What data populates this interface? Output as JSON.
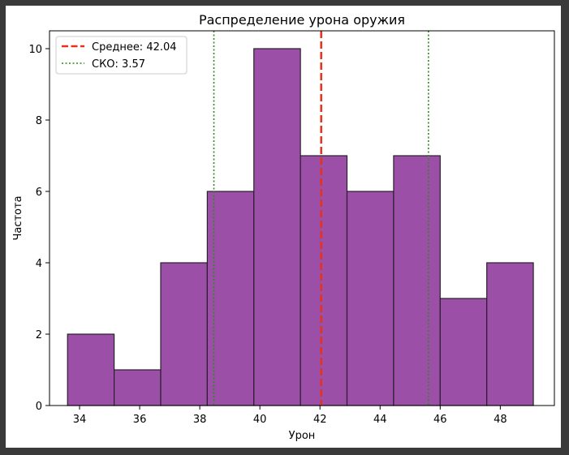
{
  "chart_data": {
    "type": "bar",
    "title": "Распределение урона оружия",
    "xlabel": "Урон",
    "ylabel": "Частота",
    "bins": [
      {
        "from": 33.6,
        "to": 35.15,
        "count": 2
      },
      {
        "from": 35.15,
        "to": 36.7,
        "count": 1
      },
      {
        "from": 36.7,
        "to": 38.25,
        "count": 4
      },
      {
        "from": 38.25,
        "to": 39.8,
        "count": 6
      },
      {
        "from": 39.8,
        "to": 41.35,
        "count": 10
      },
      {
        "from": 41.35,
        "to": 42.9,
        "count": 7
      },
      {
        "from": 42.9,
        "to": 44.45,
        "count": 6
      },
      {
        "from": 44.45,
        "to": 46.0,
        "count": 7
      },
      {
        "from": 46.0,
        "to": 47.55,
        "count": 3
      },
      {
        "from": 47.55,
        "to": 49.1,
        "count": 4
      }
    ],
    "xlim": [
      33.0,
      49.8
    ],
    "ylim": [
      0,
      10.5
    ],
    "xticks": [
      "34",
      "36",
      "38",
      "40",
      "42",
      "44",
      "46",
      "48"
    ],
    "yticks": [
      "0",
      "2",
      "4",
      "6",
      "8",
      "10"
    ],
    "mean": 42.04,
    "std": 3.57,
    "legend": [
      {
        "label": "Среднее: 42.04",
        "style": "dashed",
        "color": "#e8311b"
      },
      {
        "label": "СКО: 3.57",
        "style": "dotted",
        "color": "#2a8a1a"
      }
    ],
    "legend_position": "top-left",
    "grid": false,
    "bar_color": "#9b4fa6",
    "bar_edge_color": "#2a1f2d"
  }
}
